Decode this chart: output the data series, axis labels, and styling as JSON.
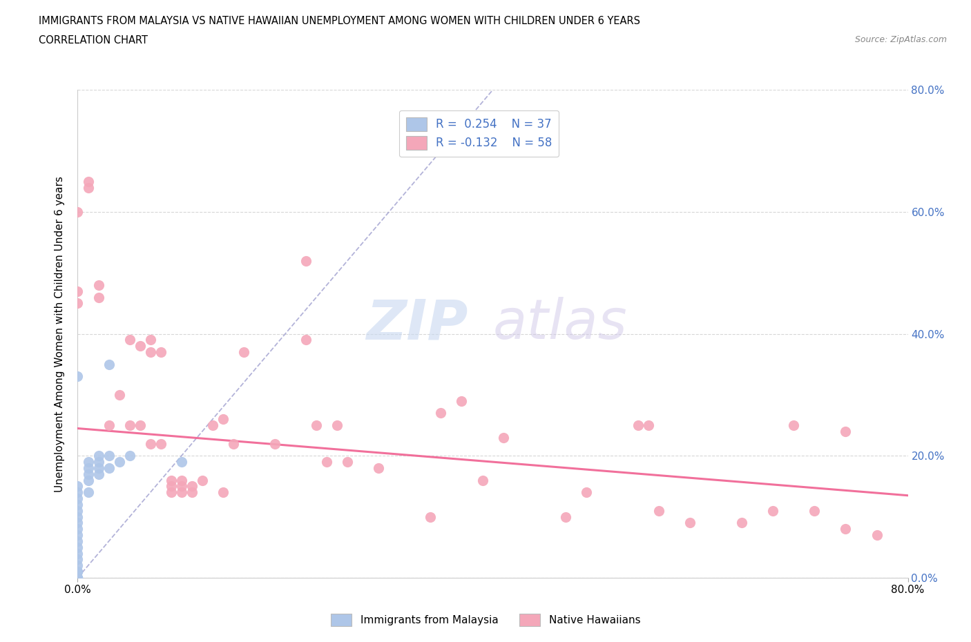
{
  "title_line1": "IMMIGRANTS FROM MALAYSIA VS NATIVE HAWAIIAN UNEMPLOYMENT AMONG WOMEN WITH CHILDREN UNDER 6 YEARS",
  "title_line2": "CORRELATION CHART",
  "source_text": "Source: ZipAtlas.com",
  "ylabel": "Unemployment Among Women with Children Under 6 years",
  "xlim": [
    0.0,
    0.8
  ],
  "ylim": [
    0.0,
    0.8
  ],
  "watermark_zip": "ZIP",
  "watermark_atlas": "atlas",
  "legend_r1": "R =  0.254",
  "legend_n1": "N = 37",
  "legend_r2": "R = -0.132",
  "legend_n2": "N = 58",
  "color_blue": "#aec6e8",
  "color_pink": "#f4a7b9",
  "color_blue_text": "#4472c4",
  "color_pink_line": "#f06090",
  "trend_blue_color": "#9999cc",
  "grid_color": "#cccccc",
  "scatter_blue": [
    [
      0.0,
      0.0
    ],
    [
      0.0,
      0.0
    ],
    [
      0.0,
      0.0
    ],
    [
      0.0,
      0.0
    ],
    [
      0.0,
      0.0
    ],
    [
      0.0,
      0.01
    ],
    [
      0.0,
      0.01
    ],
    [
      0.0,
      0.02
    ],
    [
      0.0,
      0.03
    ],
    [
      0.0,
      0.04
    ],
    [
      0.0,
      0.05
    ],
    [
      0.0,
      0.06
    ],
    [
      0.0,
      0.07
    ],
    [
      0.0,
      0.08
    ],
    [
      0.0,
      0.09
    ],
    [
      0.0,
      0.1
    ],
    [
      0.0,
      0.11
    ],
    [
      0.0,
      0.12
    ],
    [
      0.0,
      0.13
    ],
    [
      0.0,
      0.14
    ],
    [
      0.0,
      0.15
    ],
    [
      0.01,
      0.14
    ],
    [
      0.01,
      0.16
    ],
    [
      0.01,
      0.17
    ],
    [
      0.01,
      0.18
    ],
    [
      0.01,
      0.19
    ],
    [
      0.02,
      0.17
    ],
    [
      0.02,
      0.18
    ],
    [
      0.02,
      0.19
    ],
    [
      0.02,
      0.2
    ],
    [
      0.03,
      0.18
    ],
    [
      0.03,
      0.2
    ],
    [
      0.03,
      0.35
    ],
    [
      0.04,
      0.19
    ],
    [
      0.05,
      0.2
    ],
    [
      0.1,
      0.19
    ],
    [
      0.0,
      0.33
    ]
  ],
  "scatter_pink": [
    [
      0.0,
      0.6
    ],
    [
      0.0,
      0.47
    ],
    [
      0.0,
      0.45
    ],
    [
      0.01,
      0.64
    ],
    [
      0.01,
      0.65
    ],
    [
      0.02,
      0.46
    ],
    [
      0.02,
      0.48
    ],
    [
      0.03,
      0.25
    ],
    [
      0.04,
      0.3
    ],
    [
      0.05,
      0.25
    ],
    [
      0.05,
      0.39
    ],
    [
      0.06,
      0.25
    ],
    [
      0.06,
      0.38
    ],
    [
      0.07,
      0.22
    ],
    [
      0.07,
      0.37
    ],
    [
      0.07,
      0.39
    ],
    [
      0.08,
      0.22
    ],
    [
      0.08,
      0.37
    ],
    [
      0.09,
      0.14
    ],
    [
      0.09,
      0.15
    ],
    [
      0.09,
      0.16
    ],
    [
      0.1,
      0.14
    ],
    [
      0.1,
      0.15
    ],
    [
      0.1,
      0.16
    ],
    [
      0.11,
      0.14
    ],
    [
      0.11,
      0.15
    ],
    [
      0.12,
      0.16
    ],
    [
      0.13,
      0.25
    ],
    [
      0.14,
      0.14
    ],
    [
      0.14,
      0.26
    ],
    [
      0.15,
      0.22
    ],
    [
      0.16,
      0.37
    ],
    [
      0.19,
      0.22
    ],
    [
      0.22,
      0.39
    ],
    [
      0.22,
      0.52
    ],
    [
      0.23,
      0.25
    ],
    [
      0.24,
      0.19
    ],
    [
      0.25,
      0.25
    ],
    [
      0.26,
      0.19
    ],
    [
      0.29,
      0.18
    ],
    [
      0.34,
      0.1
    ],
    [
      0.35,
      0.27
    ],
    [
      0.37,
      0.29
    ],
    [
      0.39,
      0.16
    ],
    [
      0.41,
      0.23
    ],
    [
      0.47,
      0.1
    ],
    [
      0.49,
      0.14
    ],
    [
      0.54,
      0.25
    ],
    [
      0.55,
      0.25
    ],
    [
      0.56,
      0.11
    ],
    [
      0.59,
      0.09
    ],
    [
      0.64,
      0.09
    ],
    [
      0.67,
      0.11
    ],
    [
      0.69,
      0.25
    ],
    [
      0.71,
      0.11
    ],
    [
      0.74,
      0.08
    ],
    [
      0.74,
      0.24
    ],
    [
      0.77,
      0.07
    ]
  ],
  "trend_blue_x0": 0.0,
  "trend_blue_y0": 0.0,
  "trend_blue_x1": 0.4,
  "trend_blue_y1": 0.8,
  "trend_pink_x0": 0.0,
  "trend_pink_y0": 0.245,
  "trend_pink_x1": 0.8,
  "trend_pink_y1": 0.135
}
